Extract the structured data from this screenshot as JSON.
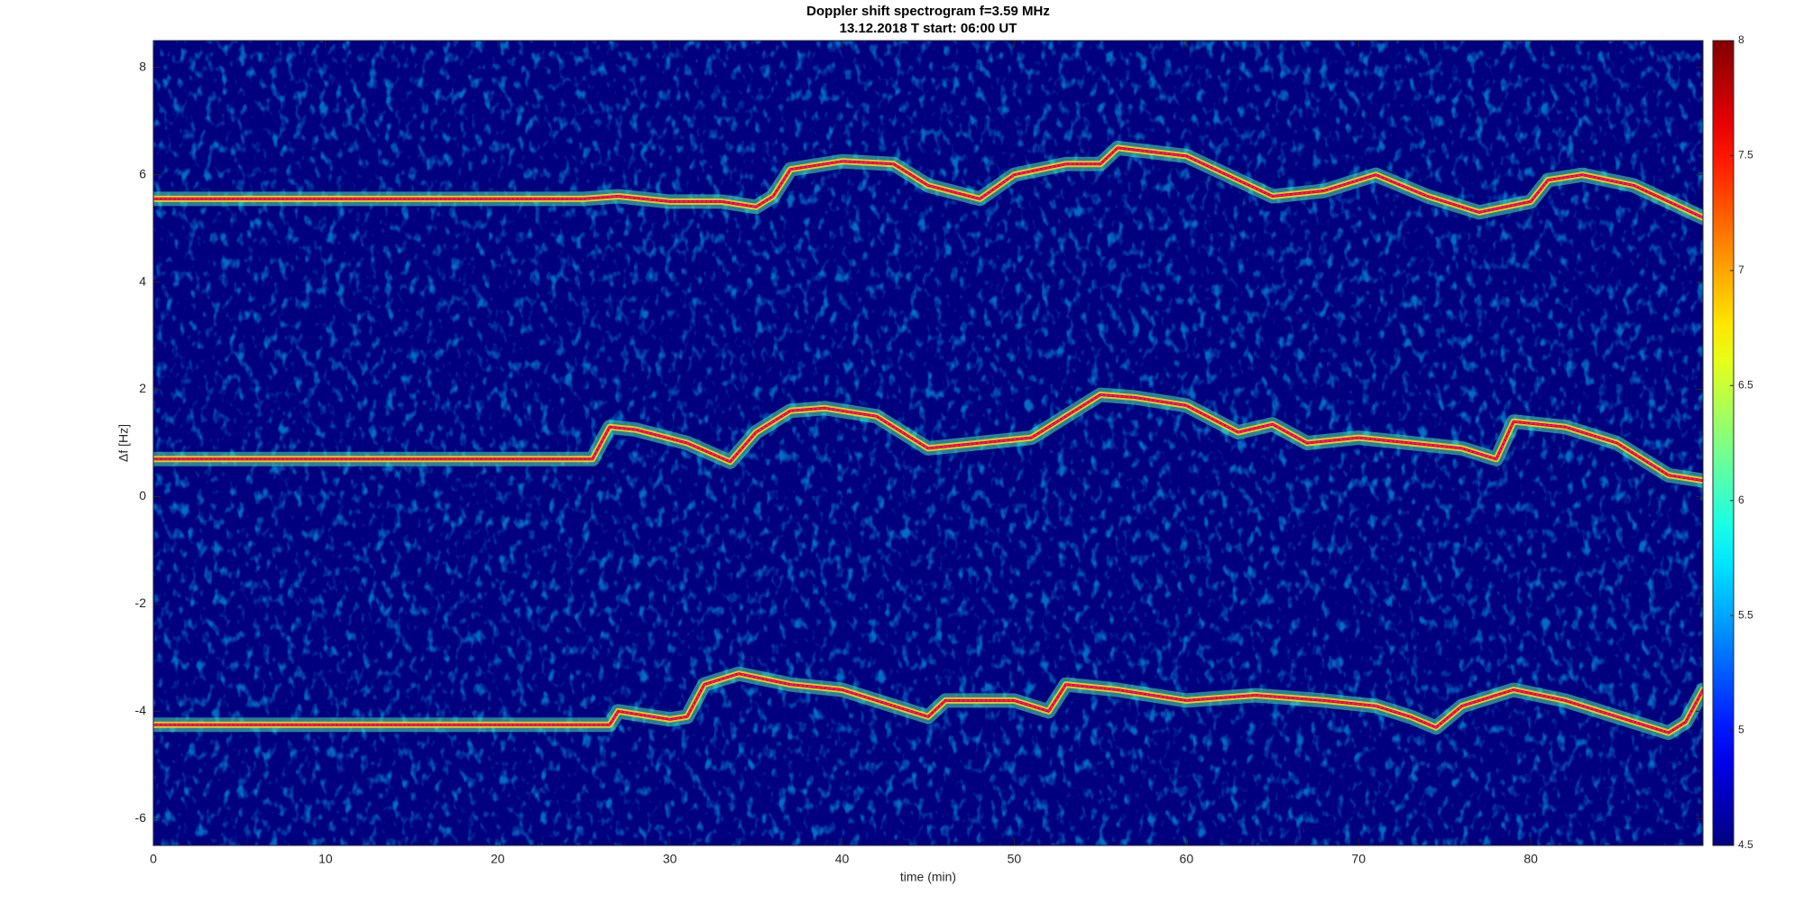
{
  "chart_data": {
    "type": "line",
    "title": "Doppler shift spectrogram f=3.59 MHz",
    "subtitle": "13.12.2018   T start: 06:00 UT",
    "x_label": "time (min)",
    "y_label": "Δf [Hz]",
    "xlim": [
      0,
      90
    ],
    "xticks": [
      0,
      10,
      20,
      30,
      40,
      50,
      60,
      70,
      80
    ],
    "ylim": [
      -6.5,
      8.5
    ],
    "yticks": [
      -6,
      -4,
      -2,
      0,
      2,
      4,
      6,
      8
    ],
    "colormap": "jet",
    "clim": [
      4.5,
      8
    ],
    "cticks": [
      4.5,
      5,
      5.5,
      6,
      6.5,
      7,
      7.5,
      8
    ],
    "series": [
      {
        "color": "#ff00ff",
        "x": [
          0,
          25,
          27,
          30,
          33,
          35,
          36,
          37,
          40,
          43,
          45,
          48,
          50,
          53,
          55,
          56,
          60,
          63,
          65,
          68,
          71,
          74,
          77,
          80,
          81,
          83,
          86,
          90
        ],
        "values": [
          5.55,
          5.55,
          5.6,
          5.5,
          5.5,
          5.4,
          5.6,
          6.1,
          6.25,
          6.2,
          5.8,
          5.55,
          6.0,
          6.2,
          6.2,
          6.5,
          6.35,
          5.9,
          5.6,
          5.7,
          6.0,
          5.6,
          5.3,
          5.5,
          5.9,
          6.0,
          5.8,
          5.2
        ]
      },
      {
        "color": "#ff00ff",
        "x": [
          0,
          25.5,
          26.5,
          28,
          31,
          33.5,
          35,
          37,
          39,
          42,
          44,
          45,
          48,
          51,
          53,
          55,
          57,
          60,
          63,
          65,
          67,
          70,
          73,
          76,
          78,
          79,
          82,
          85,
          88,
          90
        ],
        "values": [
          0.7,
          0.7,
          1.3,
          1.25,
          1.0,
          0.65,
          1.2,
          1.6,
          1.65,
          1.5,
          1.1,
          0.9,
          1.0,
          1.1,
          1.5,
          1.9,
          1.85,
          1.7,
          1.2,
          1.35,
          1.0,
          1.1,
          1.0,
          0.9,
          0.7,
          1.4,
          1.3,
          1.0,
          0.4,
          0.3
        ]
      },
      {
        "color": "#ff00ff",
        "x": [
          0,
          26.5,
          27,
          30,
          31,
          32,
          34,
          37,
          40,
          43,
          45,
          46,
          50,
          52,
          53,
          56,
          60,
          64,
          68,
          71,
          73,
          74.5,
          76,
          79,
          82,
          86,
          88,
          89,
          90
        ],
        "values": [
          -4.25,
          -4.25,
          -4.0,
          -4.15,
          -4.1,
          -3.5,
          -3.3,
          -3.5,
          -3.6,
          -3.9,
          -4.1,
          -3.8,
          -3.8,
          -4.0,
          -3.5,
          -3.6,
          -3.8,
          -3.7,
          -3.8,
          -3.9,
          -4.1,
          -4.3,
          -3.9,
          -3.6,
          -3.8,
          -4.2,
          -4.4,
          -4.2,
          -3.6
        ]
      }
    ]
  }
}
